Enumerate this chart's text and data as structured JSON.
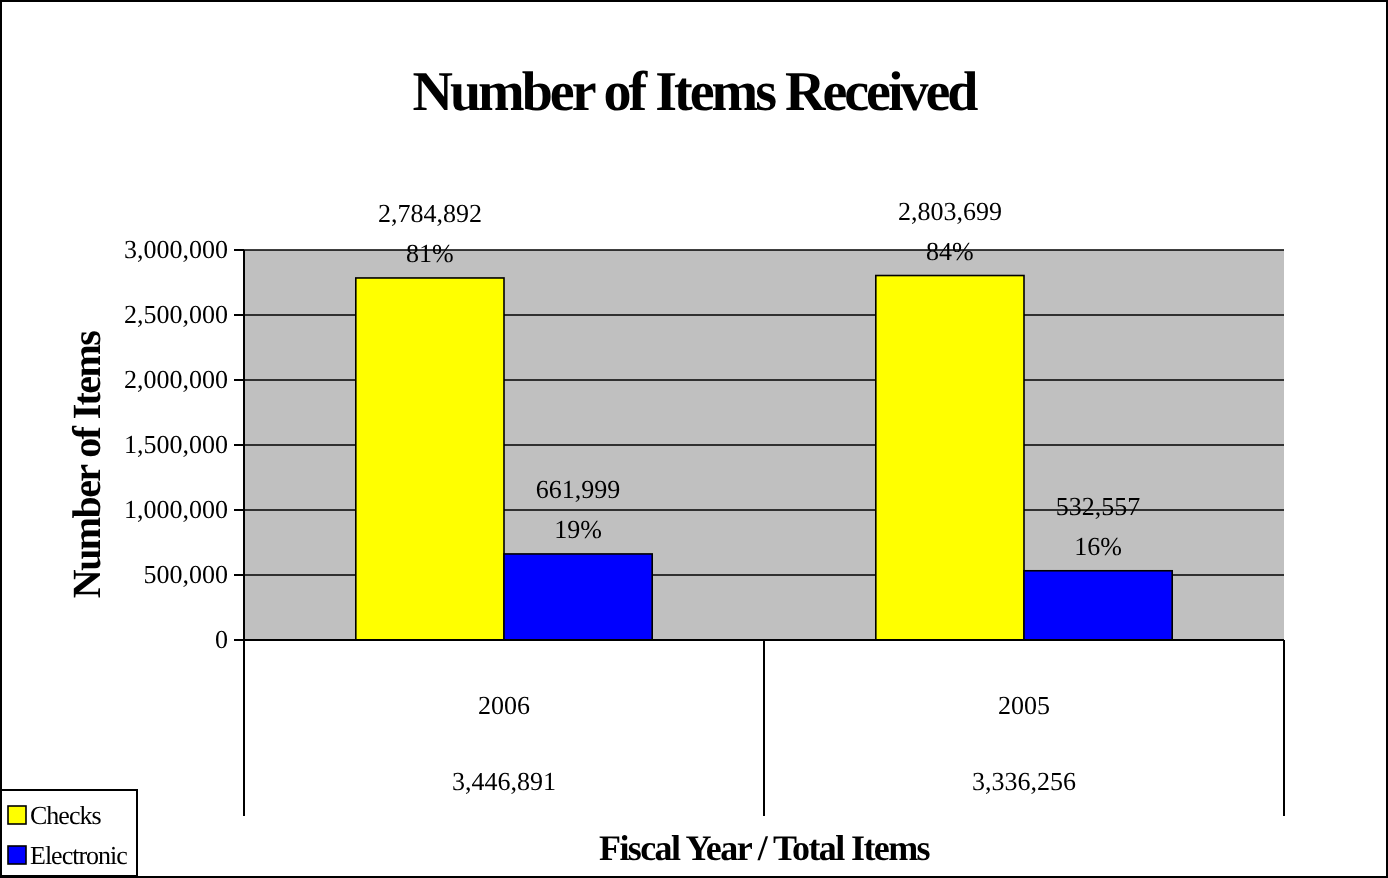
{
  "chart_data": {
    "type": "bar",
    "title": "Number of Items Received",
    "xlabel": "Fiscal Year / Total Items",
    "ylabel": "Number of Items",
    "categories": [
      "2006",
      "2005"
    ],
    "series": [
      {
        "name": "Checks",
        "color": "#ffff00",
        "values": [
          2784892,
          2803699
        ],
        "value_labels": [
          "2,784,892\n81%",
          "2,803,699\n84%"
        ]
      },
      {
        "name": "Electronic",
        "color": "#0000ff",
        "values": [
          661999,
          532557
        ],
        "value_labels": [
          "661,999\n19%",
          "532,557\n16%"
        ]
      }
    ],
    "annotations": [
      "3,446,891",
      "3,336,256"
    ],
    "ylim": [
      0,
      3000000
    ],
    "yticks": [
      {
        "value": 0,
        "label": "0"
      },
      {
        "value": 500000,
        "label": "500,000"
      },
      {
        "value": 1000000,
        "label": "1,000,000"
      },
      {
        "value": 1500000,
        "label": "1,500,000"
      },
      {
        "value": 2000000,
        "label": "2,000,000"
      },
      {
        "value": 2500000,
        "label": "2,500,000"
      },
      {
        "value": 3000000,
        "label": "3,000,000"
      }
    ],
    "grid": "y",
    "legend": "bottom left"
  }
}
